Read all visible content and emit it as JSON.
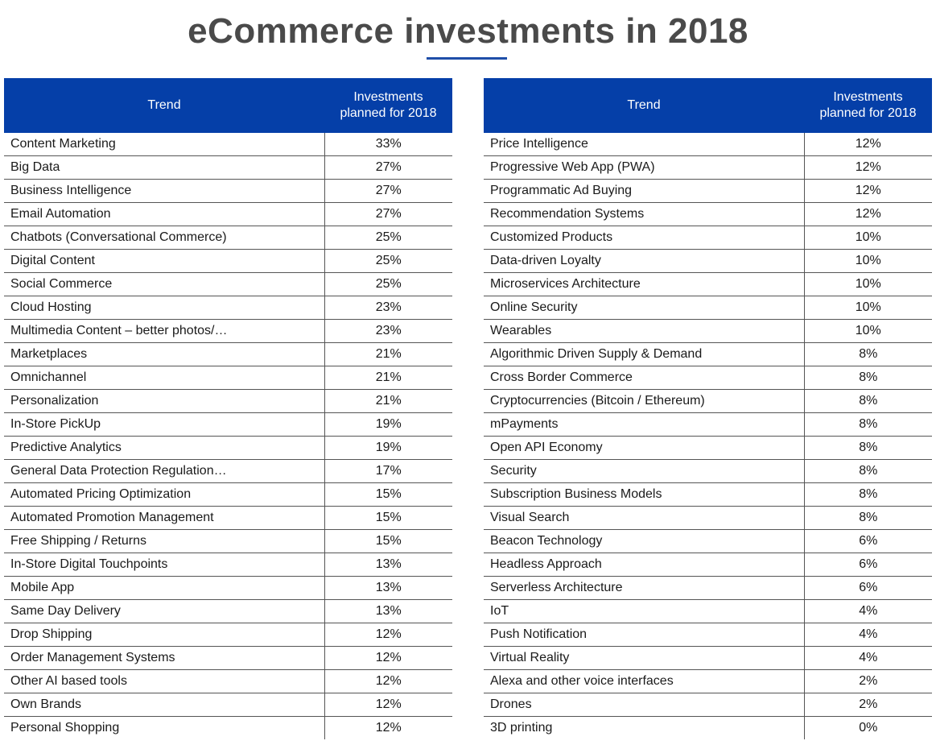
{
  "title": "eCommerce investments in 2018",
  "colors": {
    "header_bg": "#053fa8",
    "header_text": "#ffffff",
    "title_text": "#4a4a4a",
    "accent_underline": "#1f4ea8"
  },
  "chart_data": {
    "type": "table",
    "title": "eCommerce investments in 2018",
    "columns": [
      "Trend",
      "Investments planned for 2018"
    ],
    "tables": [
      {
        "header": {
          "trend": "Trend",
          "investments": "Investments planned for 2018"
        },
        "rows": [
          {
            "trend": "Content Marketing",
            "value": "33%"
          },
          {
            "trend": "Big Data",
            "value": "27%"
          },
          {
            "trend": "Business Intelligence",
            "value": "27%"
          },
          {
            "trend": "Email Automation",
            "value": "27%"
          },
          {
            "trend": "Chatbots (Conversational Commerce)",
            "value": "25%"
          },
          {
            "trend": "Digital Content",
            "value": "25%"
          },
          {
            "trend": "Social Commerce",
            "value": "25%"
          },
          {
            "trend": "Cloud Hosting",
            "value": "23%"
          },
          {
            "trend": "Multimedia Content – better photos/…",
            "value": "23%"
          },
          {
            "trend": "Marketplaces",
            "value": "21%"
          },
          {
            "trend": "Omnichannel",
            "value": "21%"
          },
          {
            "trend": "Personalization",
            "value": "21%"
          },
          {
            "trend": "In-Store PickUp",
            "value": "19%"
          },
          {
            "trend": "Predictive Analytics",
            "value": "19%"
          },
          {
            "trend": "General Data Protection Regulation…",
            "value": "17%"
          },
          {
            "trend": "Automated Pricing Optimization",
            "value": "15%"
          },
          {
            "trend": "Automated Promotion Management",
            "value": "15%"
          },
          {
            "trend": "Free Shipping / Returns",
            "value": "15%"
          },
          {
            "trend": "In-Store Digital Touchpoints",
            "value": "13%"
          },
          {
            "trend": "Mobile App",
            "value": "13%"
          },
          {
            "trend": "Same Day Delivery",
            "value": "13%"
          },
          {
            "trend": "Drop Shipping",
            "value": "12%"
          },
          {
            "trend": "Order Management Systems",
            "value": "12%"
          },
          {
            "trend": "Other AI based tools",
            "value": "12%"
          },
          {
            "trend": "Own Brands",
            "value": "12%"
          },
          {
            "trend": "Personal Shopping",
            "value": "12%"
          }
        ]
      },
      {
        "header": {
          "trend": "Trend",
          "investments": "Investments planned for 2018"
        },
        "rows": [
          {
            "trend": "Price Intelligence",
            "value": "12%"
          },
          {
            "trend": "Progressive Web App (PWA)",
            "value": "12%"
          },
          {
            "trend": "Programmatic Ad Buying",
            "value": "12%"
          },
          {
            "trend": "Recommendation Systems",
            "value": "12%"
          },
          {
            "trend": "Customized Products",
            "value": "10%"
          },
          {
            "trend": "Data-driven Loyalty",
            "value": "10%"
          },
          {
            "trend": "Microservices Architecture",
            "value": "10%"
          },
          {
            "trend": "Online Security",
            "value": "10%"
          },
          {
            "trend": "Wearables",
            "value": "10%"
          },
          {
            "trend": "Algorithmic Driven Supply & Demand",
            "value": "8%"
          },
          {
            "trend": "Cross Border Commerce",
            "value": "8%"
          },
          {
            "trend": "Cryptocurrencies (Bitcoin / Ethereum)",
            "value": "8%"
          },
          {
            "trend": "mPayments",
            "value": "8%"
          },
          {
            "trend": "Open API Economy",
            "value": "8%"
          },
          {
            "trend": "Security",
            "value": "8%"
          },
          {
            "trend": "Subscription Business Models",
            "value": "8%"
          },
          {
            "trend": "Visual Search",
            "value": "8%"
          },
          {
            "trend": "Beacon Technology",
            "value": "6%"
          },
          {
            "trend": "Headless Approach",
            "value": "6%"
          },
          {
            "trend": "Serverless Architecture",
            "value": "6%"
          },
          {
            "trend": "IoT",
            "value": "4%"
          },
          {
            "trend": "Push Notification",
            "value": "4%"
          },
          {
            "trend": "Virtual Reality",
            "value": "4%"
          },
          {
            "trend": "Alexa and other voice interfaces",
            "value": "2%"
          },
          {
            "trend": "Drones",
            "value": "2%"
          },
          {
            "trend": "3D printing",
            "value": "0%"
          }
        ]
      }
    ]
  }
}
